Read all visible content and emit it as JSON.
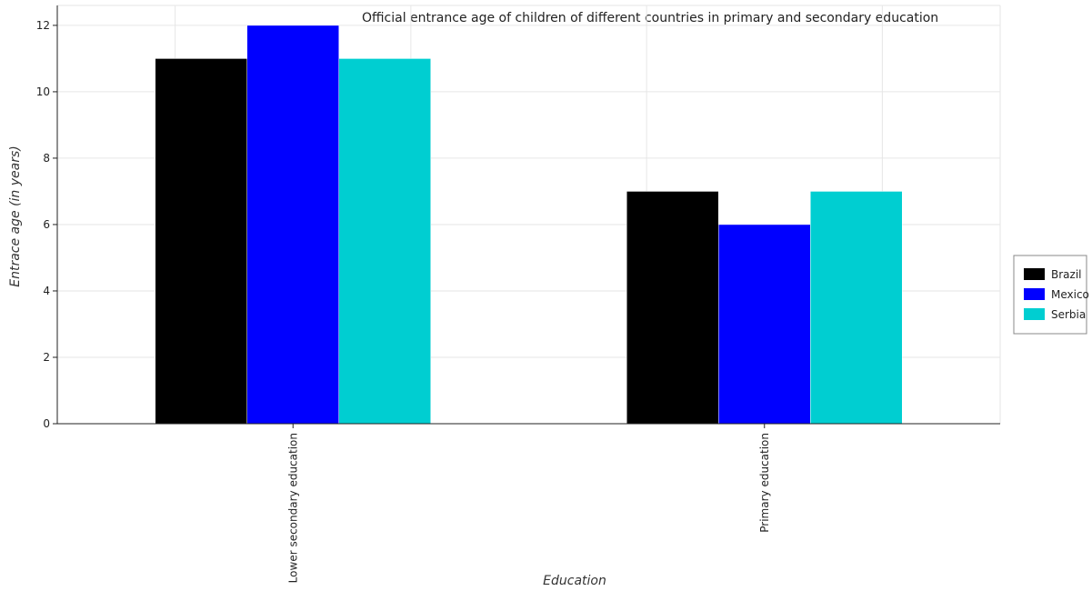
{
  "chart_data": {
    "type": "bar",
    "title": "Official entrance age of children of different countries in primary and secondary education",
    "xlabel": "Education",
    "ylabel": "Entrace age (in  years)",
    "categories": [
      "Lower secondary education",
      "Primary education"
    ],
    "series": [
      {
        "name": "Brazil",
        "color": "#000000",
        "values": [
          11,
          7
        ]
      },
      {
        "name": "Mexico",
        "color": "#0000ff",
        "values": [
          12,
          6
        ]
      },
      {
        "name": "Serbia",
        "color": "#00ced1",
        "values": [
          11,
          7
        ]
      }
    ],
    "ylim": [
      0,
      12.6
    ],
    "yticks": [
      0,
      2,
      4,
      6,
      8,
      10,
      12
    ],
    "grid": true,
    "legend_position": "right"
  }
}
